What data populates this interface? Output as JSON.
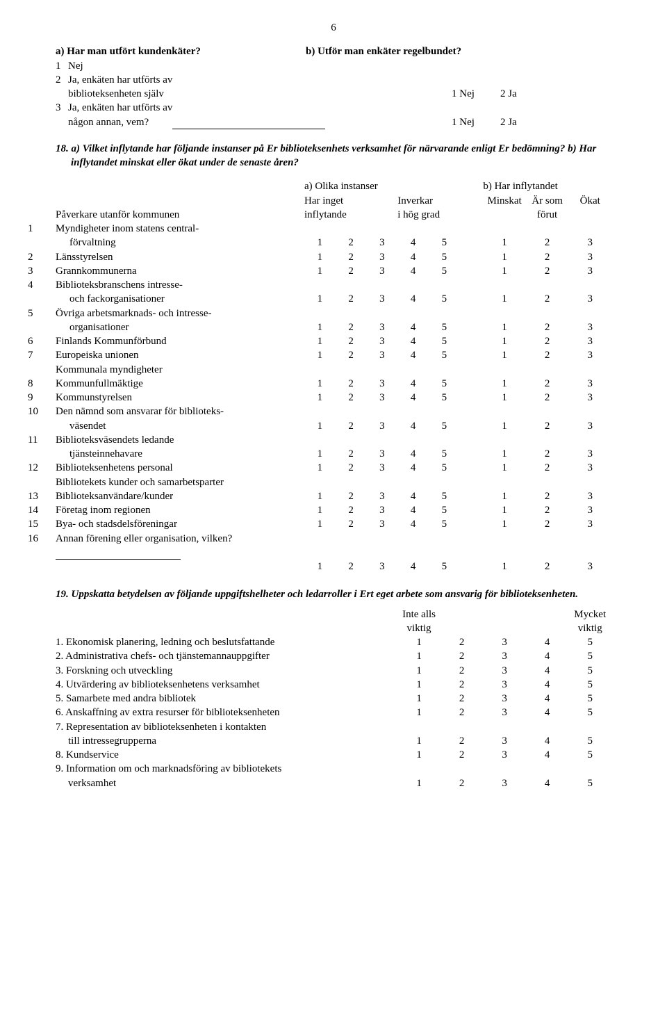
{
  "page_number": "6",
  "qA": {
    "title": "a) Har man utfört kundenkäter?",
    "titleB": "b) Utför man enkäter regelbundet?",
    "opt1_num": "1",
    "opt1": "Nej",
    "opt2_num": "2",
    "opt2a": "Ja, enkäten har utförts av",
    "opt2b": "biblioteksenheten själv",
    "opt3_num": "3",
    "opt3a": "Ja, enkäten har utförts av",
    "opt3b": "någon annan, vem?",
    "resp1a": "1 Nej",
    "resp1b": "2 Ja",
    "resp2a": "1 Nej",
    "resp2b": "2 Ja"
  },
  "q18_intro": "18. a) Vilket inflytande har följande instanser på Er biblioteksenhets verksamhet för närvarande enligt Er bedömning?   b) Har inflytandet minskat eller ökat under de senaste åren?",
  "matrix_headers": {
    "a_title": "a) Olika instanser",
    "b_title": "b) Har inflytandet",
    "a_left": "Har inget",
    "a_left2": "inflytande",
    "a_right": "Inverkar",
    "a_right2": "i hög grad",
    "b1": "Minskat",
    "b2": "Är som",
    "b3": "Ökat",
    "b2b": "förut",
    "left_label": "Påverkare utanför kommunen"
  },
  "matrix_rows_a": [
    {
      "n": "1",
      "label": "Myndigheter inom statens central-",
      "label2": "förvaltning"
    },
    {
      "n": "2",
      "label": "Länsstyrelsen"
    },
    {
      "n": "3",
      "label": "Grannkommunerna"
    },
    {
      "n": "4",
      "label": "Biblioteksbranschens intresse-",
      "label2": "och fackorganisationer"
    },
    {
      "n": "5",
      "label": "Övriga arbetsmarknads- och intresse-",
      "label2": "organisationer"
    },
    {
      "n": "6",
      "label": "Finlands Kommunförbund"
    },
    {
      "n": "7",
      "label": "Europeiska unionen"
    }
  ],
  "sectionB_title": "Kommunala myndigheter",
  "matrix_rows_b": [
    {
      "n": "8",
      "label": "Kommunfullmäktige"
    },
    {
      "n": "9",
      "label": "Kommunstyrelsen"
    },
    {
      "n": "10",
      "label": "Den nämnd som ansvarar för biblioteks-",
      "label2": "väsendet"
    },
    {
      "n": "11",
      "label": "Biblioteksväsendets ledande",
      "label2": "tjänsteinnehavare"
    },
    {
      "n": "12",
      "label": "Biblioteksenhetens personal"
    }
  ],
  "sectionC_title": "Bibliotekets kunder och samarbetsparter",
  "matrix_rows_c": [
    {
      "n": "13",
      "label": "Biblioteksanvändare/kunder"
    },
    {
      "n": "14",
      "label": "Företag inom regionen"
    },
    {
      "n": "15",
      "label": "Bya- och stadsdelsföreningar"
    },
    {
      "n": "16",
      "label": "Annan förening eller organisation, vilken?",
      "noScale": true
    }
  ],
  "scale_a": [
    "1",
    "2",
    "3",
    "4",
    "5"
  ],
  "scale_b": [
    "1",
    "2",
    "3"
  ],
  "q19_intro": "19. Uppskatta betydelsen av följande uppgiftshelheter och ledarroller i Ert eget arbete som ansvarig för biblioteksenheten.",
  "q19_h_left": "Inte alls",
  "q19_h_left2": "viktig",
  "q19_h_right": "Mycket",
  "q19_h_right2": "viktig",
  "q19_rows": [
    {
      "n": "1.",
      "label": "Ekonomisk planering, ledning och beslutsfattande"
    },
    {
      "n": "2.",
      "label": "Administrativa chefs- och tjänstemannauppgifter"
    },
    {
      "n": "3.",
      "label": "Forskning och utveckling"
    },
    {
      "n": "4.",
      "label": "Utvärdering av biblioteksenhetens verksamhet"
    },
    {
      "n": "5.",
      "label": "Samarbete med andra bibliotek"
    },
    {
      "n": "6.",
      "label": "Anskaffning av extra resurser för biblioteksenheten"
    },
    {
      "n": "7.",
      "label": "Representation av biblioteksenheten i kontakten",
      "label2": "till intressegrupperna"
    },
    {
      "n": "8.",
      "label": "Kundservice"
    },
    {
      "n": "9.",
      "label": "Information om och marknadsföring av bibliotekets",
      "label2": "verksamhet"
    }
  ],
  "q19_scale": [
    "1",
    "2",
    "3",
    "4",
    "5"
  ]
}
